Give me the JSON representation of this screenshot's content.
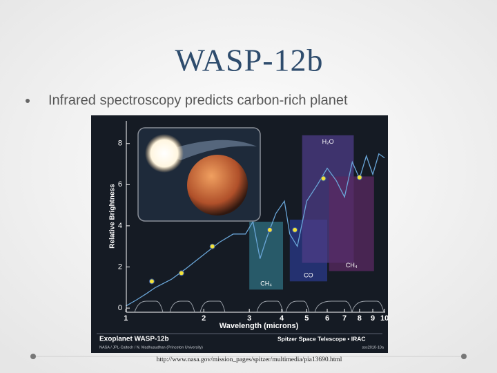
{
  "slide": {
    "title": "WASP-12b",
    "bullet": "Infrared spectroscopy predicts carbon-rich planet",
    "url": "http://www.nasa.gov/mission_pages/spitzer/multimedia/pia13690.html"
  },
  "chart_data": {
    "type": "scatter",
    "title": "Exoplanet WASP-12b",
    "credit": "NASA / JPL-Caltech / N. Madhusudhan (Princeton University)",
    "mission": "Spitzer Space Telescope • IRAC",
    "id": "ssc2010-10a",
    "x_label": "Wavelength (microns)",
    "y_label": "Relative Brightness",
    "log_x": true,
    "xlim": [
      0.98,
      10.3
    ],
    "xticks": [
      1,
      2,
      3,
      4,
      5,
      6,
      7,
      8,
      9,
      10
    ],
    "ylim": [
      -0.2,
      9.1
    ],
    "yticks": [
      0,
      2,
      4,
      6,
      8
    ],
    "line": {
      "color": "#6aa6d8",
      "x": [
        1.0,
        1.1,
        1.2,
        1.3,
        1.5,
        1.7,
        2.0,
        2.3,
        2.6,
        2.9,
        3.1,
        3.3,
        3.5,
        3.8,
        4.1,
        4.3,
        4.6,
        5.0,
        5.5,
        6.0,
        6.5,
        7.0,
        7.5,
        8.0,
        8.5,
        9.0,
        9.5,
        10.0
      ],
      "values": [
        0.1,
        0.4,
        0.7,
        1.0,
        1.4,
        1.9,
        2.6,
        3.2,
        3.6,
        3.6,
        4.2,
        2.4,
        3.4,
        4.6,
        5.2,
        3.6,
        3.0,
        5.2,
        6.0,
        6.8,
        6.2,
        5.4,
        7.1,
        6.3,
        7.4,
        6.5,
        7.5,
        7.3
      ]
    },
    "points": {
      "color": "#f2e23a",
      "x": [
        1.26,
        1.64,
        2.16,
        3.6,
        4.5,
        5.8,
        8.0
      ],
      "values": [
        1.3,
        1.7,
        3.0,
        3.8,
        3.8,
        6.3,
        6.35
      ]
    },
    "regions": [
      {
        "label": "CH₄",
        "x": [
          3.0,
          4.05
        ],
        "y": [
          0.9,
          4.2
        ],
        "color": "#2f7080",
        "label_position": "bottom"
      },
      {
        "label": "CO",
        "x": [
          4.3,
          6.0
        ],
        "y": [
          1.3,
          4.3
        ],
        "color": "#2a3a8a",
        "label_position": "bottom"
      },
      {
        "label": "H₂O",
        "x": [
          4.8,
          7.6
        ],
        "y": [
          2.2,
          8.4
        ],
        "color": "#4c3c86",
        "label_position": "top"
      },
      {
        "label": "CH₄",
        "x": [
          6.1,
          9.1
        ],
        "y": [
          1.8,
          6.4
        ],
        "color": "#5a2a62",
        "label_position": "bottom"
      }
    ]
  }
}
